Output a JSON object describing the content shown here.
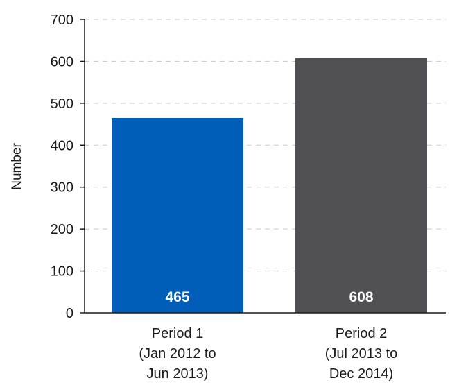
{
  "chart_data": {
    "type": "bar",
    "categories": [
      [
        "Period 1",
        "(Jan 2012 to",
        "Jun 2013)"
      ],
      [
        "Period 2",
        "(Jul 2013 to",
        "Dec 2014)"
      ]
    ],
    "values": [
      465,
      608
    ],
    "data_labels": [
      "465",
      "608"
    ],
    "colors": [
      "#005eb8",
      "#505054"
    ],
    "title": "",
    "xlabel": "",
    "ylabel": "Number",
    "ylim": [
      0,
      700
    ],
    "yticks": [
      0,
      100,
      200,
      300,
      400,
      500,
      600,
      700
    ],
    "grid": true
  }
}
